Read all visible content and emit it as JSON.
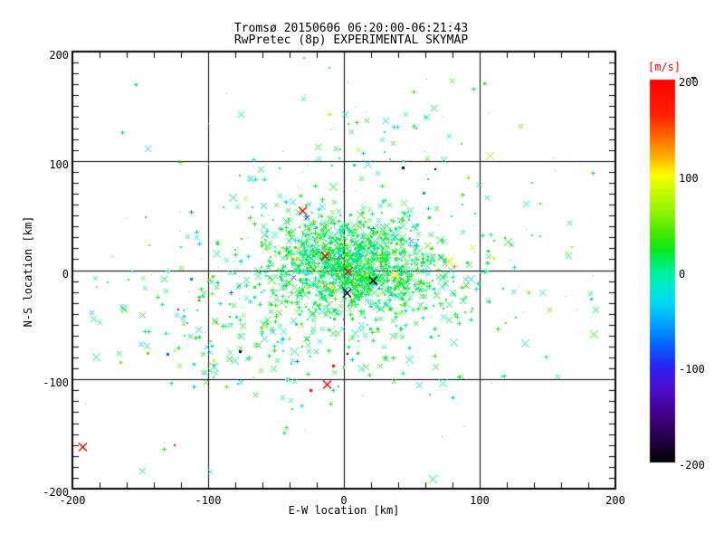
{
  "chart_data": {
    "type": "scatter",
    "title": "Tromsø 20150606 06:20:00-06:21:43",
    "subtitle": "RwPretec (8p) EXPERIMENTAL SKYMAP",
    "xlabel": "E-W location [km]",
    "ylabel": "N-S location [km]",
    "xlim": [
      -200,
      200
    ],
    "ylim": [
      -200,
      200
    ],
    "xticks": [
      -200,
      -100,
      0,
      100,
      200
    ],
    "yticks": [
      -200,
      -100,
      0,
      100,
      200
    ],
    "x_minor_step": 20,
    "y_minor_step": 10,
    "grid": true,
    "grid_color": "#000000",
    "seed": 1337,
    "colorbar": {
      "label": "[m/s]",
      "label_color": "#ff0000",
      "min": -200,
      "max": 200,
      "ticks": [
        200,
        100,
        0,
        -100,
        -200
      ],
      "stops": [
        [
          200,
          "#ff0000"
        ],
        [
          163,
          "#ff2000"
        ],
        [
          140,
          "#ff6a00"
        ],
        [
          118,
          "#ffb400"
        ],
        [
          100,
          "#fbff00"
        ],
        [
          82,
          "#c8fa00"
        ],
        [
          60,
          "#8cf200"
        ],
        [
          40,
          "#44ea00"
        ],
        [
          22,
          "#0ae81e"
        ],
        [
          10,
          "#00ed62"
        ],
        [
          0,
          "#00f295"
        ],
        [
          -12,
          "#00ecc0"
        ],
        [
          -30,
          "#00dfee"
        ],
        [
          -52,
          "#00acff"
        ],
        [
          -75,
          "#0069ff"
        ],
        [
          -100,
          "#2822f5"
        ],
        [
          -122,
          "#4b0fd0"
        ],
        [
          -148,
          "#45008f"
        ],
        [
          -175,
          "#250046"
        ],
        [
          -200,
          "#000000"
        ]
      ]
    },
    "clusters": [
      {
        "name": "core",
        "count": 1000,
        "cx": 2,
        "cy": 6,
        "sx": 27,
        "sy": 21,
        "v_mean": 14,
        "v_sd": 15
      },
      {
        "name": "right-tail",
        "count": 230,
        "cx": 30,
        "cy": 0,
        "sx": 38,
        "sy": 24,
        "v_mean": 18,
        "v_sd": 20
      },
      {
        "name": "halo",
        "count": 430,
        "cx": -5,
        "cy": -5,
        "sx": 65,
        "sy": 50,
        "v_mean": 10,
        "v_sd": 22
      },
      {
        "name": "lower-left",
        "count": 120,
        "cx": -60,
        "cy": -55,
        "sx": 55,
        "sy": 35,
        "v_mean": 8,
        "v_sd": 24
      },
      {
        "name": "wide-field",
        "count": 170,
        "cx": 0,
        "cy": -5,
        "sx": 115,
        "sy": 88,
        "v_mean": 8,
        "v_sd": 28
      },
      {
        "name": "top-group",
        "count": 48,
        "cx": 28,
        "cy": 145,
        "sx": 45,
        "sy": 30,
        "v_mean": 12,
        "v_sd": 20
      }
    ],
    "outliers": [
      {
        "x": -31,
        "y": 55,
        "v": 198,
        "m": "x",
        "s": 9,
        "t": 2
      },
      {
        "x": -14,
        "y": 14,
        "v": 198,
        "m": "x",
        "s": 8,
        "t": 2
      },
      {
        "x": 3,
        "y": 0,
        "v": 198,
        "m": "x",
        "s": 9,
        "t": 2
      },
      {
        "x": -13,
        "y": -104,
        "v": 198,
        "m": "x",
        "s": 8,
        "t": 2
      },
      {
        "x": -193,
        "y": -161,
        "v": 198,
        "m": "x",
        "s": 8,
        "t": 2
      },
      {
        "x": 21,
        "y": -9,
        "v": -199,
        "m": "x",
        "s": 8,
        "t": 2
      },
      {
        "x": 2,
        "y": -20,
        "v": -199,
        "m": "x",
        "s": 8,
        "t": 2
      },
      {
        "x": -125,
        "y": -160,
        "v": 198,
        "m": "dot",
        "s": 2
      },
      {
        "x": -8,
        "y": -87,
        "v": 198,
        "m": "dot",
        "s": 3
      },
      {
        "x": -25,
        "y": -110,
        "v": 198,
        "m": "dot",
        "s": 3
      },
      {
        "x": -107,
        "y": -28,
        "v": 198,
        "m": "dot",
        "s": 2
      },
      {
        "x": -122,
        "y": -36,
        "v": 198,
        "m": "dot",
        "s": 2
      },
      {
        "x": 43,
        "y": 94,
        "v": -199,
        "m": "dot",
        "s": 3
      },
      {
        "x": 67,
        "y": 92,
        "v": -199,
        "m": "dot",
        "s": 2
      },
      {
        "x": -77,
        "y": -74,
        "v": -199,
        "m": "dot",
        "s": 3
      },
      {
        "x": 3,
        "y": -77,
        "v": -199,
        "m": "dot",
        "s": 2
      },
      {
        "x": -96,
        "y": -82,
        "v": 85,
        "m": "dot",
        "s": 3
      },
      {
        "x": -130,
        "y": -77,
        "v": -85,
        "m": "dot",
        "s": 3
      },
      {
        "x": -163,
        "y": -34,
        "v": -40,
        "m": "x",
        "s": 7,
        "t": 1
      },
      {
        "x": 77,
        "y": 9,
        "v": 105,
        "m": "x",
        "s": 9,
        "t": 2
      },
      {
        "x": 37,
        "y": -4,
        "v": 105,
        "m": "x",
        "s": 8,
        "t": 2
      },
      {
        "x": -8,
        "y": -16,
        "v": 100,
        "m": "x",
        "s": 7,
        "t": 1
      }
    ]
  }
}
